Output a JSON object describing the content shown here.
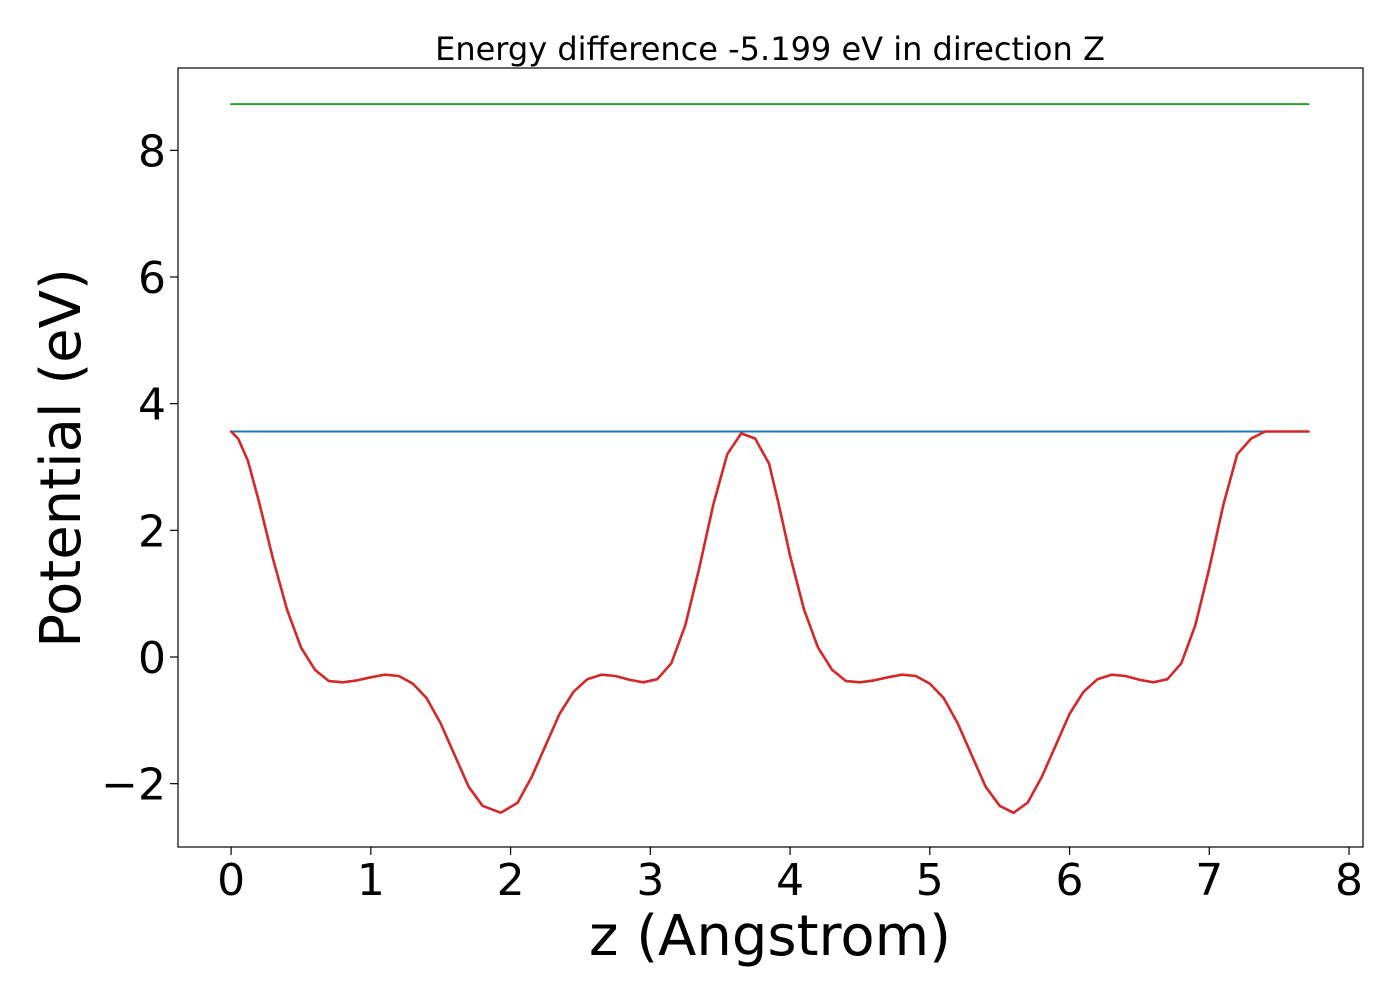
{
  "chart_data": {
    "type": "line",
    "title": "Energy difference -5.199 eV in direction Z",
    "xlabel": "z (Angstrom)",
    "ylabel": "Potential (eV)",
    "xlim": [
      -0.38,
      8.1
    ],
    "ylim": [
      -3.0,
      9.3
    ],
    "xticks": [
      0,
      1,
      2,
      3,
      4,
      5,
      6,
      7,
      8
    ],
    "xtick_labels": [
      "0",
      "1",
      "2",
      "3",
      "4",
      "5",
      "6",
      "7",
      "8"
    ],
    "yticks": [
      -2,
      0,
      2,
      4,
      6,
      8
    ],
    "ytick_labels": [
      "−2",
      "0",
      "2",
      "4",
      "6",
      "8"
    ],
    "grid": false,
    "series": [
      {
        "color": "#2ca02c",
        "x": [
          0.0,
          7.71
        ],
        "y": [
          8.73,
          8.73
        ]
      },
      {
        "color": "#1f77b4",
        "x": [
          0.0,
          7.71
        ],
        "y": [
          3.56,
          3.56
        ]
      },
      {
        "color": "#d62728",
        "x": [
          0.0,
          0.05,
          0.12,
          0.2,
          0.3,
          0.4,
          0.5,
          0.6,
          0.7,
          0.8,
          0.9,
          1.0,
          1.1,
          1.2,
          1.3,
          1.4,
          1.5,
          1.6,
          1.7,
          1.8,
          1.93,
          2.05,
          2.15,
          2.25,
          2.35,
          2.45,
          2.55,
          2.65,
          2.75,
          2.85,
          2.95,
          3.05,
          3.15,
          3.25,
          3.35,
          3.45,
          3.55,
          3.65,
          3.75,
          3.85,
          3.92,
          4.0,
          4.1,
          4.2,
          4.3,
          4.4,
          4.5,
          4.6,
          4.7,
          4.8,
          4.9,
          5.0,
          5.1,
          5.2,
          5.3,
          5.4,
          5.5,
          5.6,
          5.7,
          5.8,
          5.9,
          6.0,
          6.1,
          6.2,
          6.3,
          6.4,
          6.5,
          6.6,
          6.7,
          6.8,
          6.9,
          7.0,
          7.1,
          7.2,
          7.3,
          7.4,
          7.5,
          7.6,
          7.71
        ],
        "y": [
          3.56,
          3.45,
          3.1,
          2.45,
          1.55,
          0.75,
          0.15,
          -0.2,
          -0.38,
          -0.4,
          -0.37,
          -0.32,
          -0.28,
          -0.3,
          -0.42,
          -0.65,
          -1.05,
          -1.55,
          -2.05,
          -2.35,
          -2.46,
          -2.3,
          -1.9,
          -1.4,
          -0.9,
          -0.55,
          -0.35,
          -0.28,
          -0.3,
          -0.36,
          -0.4,
          -0.35,
          -0.1,
          0.5,
          1.4,
          2.4,
          3.2,
          3.53,
          3.45,
          3.05,
          2.4,
          1.6,
          0.75,
          0.15,
          -0.2,
          -0.38,
          -0.4,
          -0.37,
          -0.32,
          -0.28,
          -0.3,
          -0.42,
          -0.65,
          -1.05,
          -1.55,
          -2.05,
          -2.35,
          -2.46,
          -2.3,
          -1.9,
          -1.4,
          -0.9,
          -0.55,
          -0.35,
          -0.28,
          -0.3,
          -0.36,
          -0.4,
          -0.35,
          -0.1,
          0.5,
          1.4,
          2.4,
          3.2,
          3.45,
          3.56,
          3.56,
          3.56,
          3.56
        ]
      }
    ]
  }
}
